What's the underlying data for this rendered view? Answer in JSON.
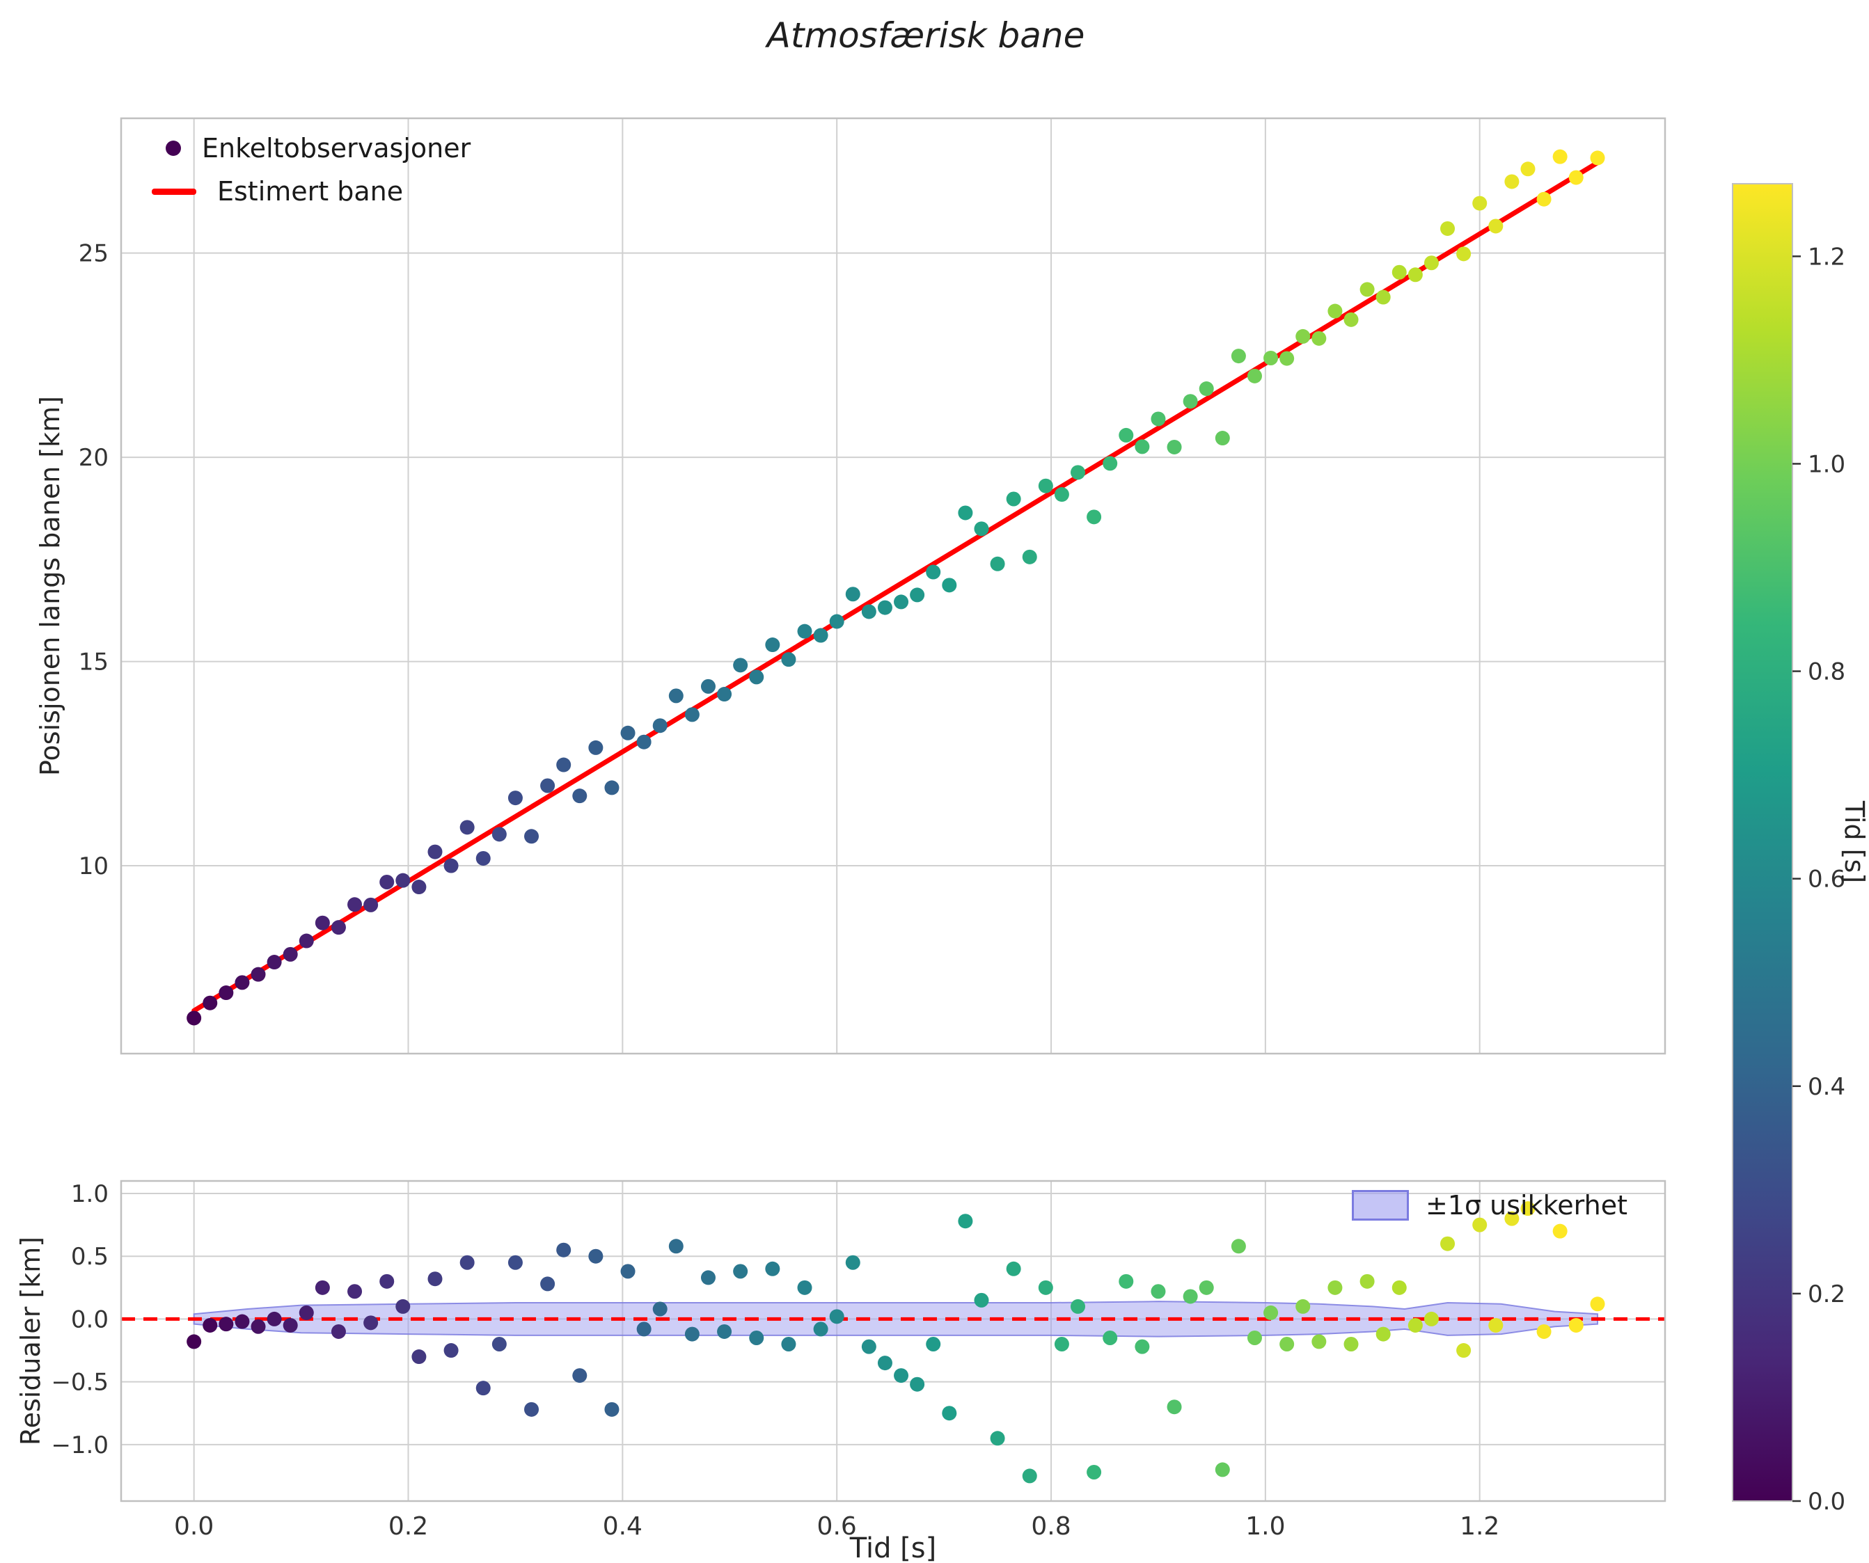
{
  "figure": {
    "background": "#ffffff",
    "grid_color": "#d0d0d0",
    "spine_color": "#c0c0c0",
    "tick_color": "#333333"
  },
  "chart_data": {
    "type": "scatter",
    "title": "Atmosfærisk bane",
    "xlabel": "Tid [s]",
    "xticks": {
      "values": [
        0.0,
        0.2,
        0.4,
        0.6,
        0.8,
        1.0,
        1.2
      ],
      "labels": [
        "0.0",
        "0.2",
        "0.4",
        "0.6",
        "0.8",
        "1.0",
        "1.2"
      ]
    },
    "main": {
      "ylabel": "Posisjonen langs banen [km]",
      "xlim": [
        -0.068,
        1.373
      ],
      "ylim": [
        5.4,
        28.3
      ],
      "grid": true,
      "yticks": {
        "values": [
          10,
          15,
          20,
          25
        ],
        "labels": [
          "10",
          "15",
          "20",
          "25"
        ]
      },
      "legend_position": "upper left",
      "legend": [
        {
          "label": "Enkeltobservasjoner",
          "marker": "dot",
          "color": "#440154"
        },
        {
          "label": "Estimert bane",
          "marker": "line",
          "color": "#ff0000"
        }
      ],
      "trend": {
        "t_start": 0.0,
        "t_end": 1.31,
        "intercept": 6.45,
        "slope": 15.85,
        "color": "#ff0000"
      },
      "points": {
        "t": [
          0.0,
          0.015,
          0.03,
          0.045,
          0.06,
          0.075,
          0.09,
          0.105,
          0.12,
          0.135,
          0.15,
          0.165,
          0.18,
          0.195,
          0.21,
          0.225,
          0.24,
          0.255,
          0.27,
          0.285,
          0.3,
          0.315,
          0.33,
          0.345,
          0.36,
          0.375,
          0.39,
          0.405,
          0.42,
          0.435,
          0.45,
          0.465,
          0.48,
          0.495,
          0.51,
          0.525,
          0.54,
          0.555,
          0.57,
          0.585,
          0.6,
          0.615,
          0.63,
          0.645,
          0.66,
          0.675,
          0.69,
          0.705,
          0.72,
          0.735,
          0.75,
          0.765,
          0.78,
          0.795,
          0.81,
          0.825,
          0.84,
          0.855,
          0.87,
          0.885,
          0.9,
          0.915,
          0.93,
          0.945,
          0.96,
          0.975,
          0.99,
          1.005,
          1.02,
          1.035,
          1.05,
          1.065,
          1.08,
          1.095,
          1.11,
          1.125,
          1.14,
          1.155,
          1.17,
          1.185,
          1.2,
          1.215,
          1.23,
          1.245,
          1.26,
          1.275,
          1.29,
          1.31
        ],
        "y": [
          6.27,
          6.64,
          6.89,
          7.14,
          7.34,
          7.64,
          7.83,
          8.16,
          8.6,
          8.49,
          9.05,
          9.04,
          9.6,
          9.64,
          9.48,
          10.34,
          10.0,
          10.94,
          10.18,
          10.77,
          11.66,
          10.72,
          11.96,
          12.47,
          11.71,
          12.89,
          11.91,
          13.25,
          13.03,
          13.43,
          14.16,
          13.7,
          14.39,
          14.2,
          14.91,
          14.62,
          15.41,
          15.05,
          15.74,
          15.64,
          15.98,
          16.65,
          16.22,
          16.32,
          16.46,
          16.63,
          17.19,
          16.87,
          18.64,
          18.25,
          17.39,
          18.98,
          17.56,
          19.3,
          19.09,
          19.63,
          18.54,
          19.85,
          20.54,
          20.26,
          20.94,
          20.25,
          21.37,
          21.68,
          20.47,
          22.48,
          21.99,
          22.43,
          22.42,
          22.96,
          22.91,
          23.58,
          23.37,
          24.11,
          23.92,
          24.53,
          24.47,
          24.76,
          25.6,
          24.98,
          26.22,
          25.66,
          26.75,
          27.06,
          26.32,
          27.36,
          26.85,
          27.33
        ]
      }
    },
    "residuals": {
      "ylabel": "Residualer [km]",
      "ylim": [
        -1.45,
        1.1
      ],
      "grid": true,
      "yticks": {
        "values": [
          -1.0,
          -0.5,
          0.0,
          0.5,
          1.0
        ],
        "labels": [
          "−1.0",
          "−0.5",
          "0.0",
          "0.5",
          "1.0"
        ]
      },
      "zero_line": {
        "y": 0.0,
        "color": "#ff0000",
        "style": "dashed"
      },
      "legend_label": "±1σ usikkerhet",
      "legend_position": "upper right",
      "band": {
        "t": [
          0.0,
          0.05,
          0.1,
          0.2,
          0.3,
          0.4,
          0.5,
          0.6,
          0.7,
          0.8,
          0.9,
          1.0,
          1.05,
          1.1,
          1.13,
          1.17,
          1.22,
          1.27,
          1.31
        ],
        "sigma": [
          0.04,
          0.08,
          0.11,
          0.12,
          0.13,
          0.13,
          0.13,
          0.13,
          0.13,
          0.13,
          0.14,
          0.13,
          0.12,
          0.1,
          0.08,
          0.13,
          0.12,
          0.06,
          0.04
        ],
        "fill": "#9e9ef0",
        "edge": "#7b7be0"
      },
      "points": {
        "values": [
          -0.18,
          -0.05,
          -0.04,
          -0.02,
          -0.06,
          0.0,
          -0.05,
          0.05,
          0.25,
          -0.1,
          0.22,
          -0.03,
          0.3,
          0.1,
          -0.3,
          0.32,
          -0.25,
          0.45,
          -0.55,
          -0.2,
          0.45,
          -0.72,
          0.28,
          0.55,
          -0.45,
          0.5,
          -0.72,
          0.38,
          -0.08,
          0.08,
          0.58,
          -0.12,
          0.33,
          -0.1,
          0.38,
          -0.15,
          0.4,
          -0.2,
          0.25,
          -0.08,
          0.02,
          0.45,
          -0.22,
          -0.35,
          -0.45,
          -0.52,
          -0.2,
          -0.75,
          0.78,
          0.15,
          -0.95,
          0.4,
          -1.25,
          0.25,
          -0.2,
          0.1,
          -1.22,
          -0.15,
          0.3,
          -0.22,
          0.22,
          -0.7,
          0.18,
          0.25,
          -1.2,
          0.58,
          -0.15,
          0.05,
          -0.2,
          0.1,
          -0.18,
          0.25,
          -0.2,
          0.3,
          -0.12,
          0.25,
          -0.05,
          0.0,
          0.6,
          -0.25,
          0.75,
          -0.05,
          0.8,
          0.88,
          -0.1,
          0.7,
          -0.05,
          0.12
        ]
      }
    },
    "colorbar": {
      "label": "Tid [s]",
      "vmin": 0.0,
      "vmax": 1.27,
      "ticks": {
        "values": [
          0.0,
          0.2,
          0.4,
          0.6,
          0.8,
          1.0,
          1.2
        ],
        "labels": [
          "0.0",
          "0.2",
          "0.4",
          "0.6",
          "0.8",
          "1.0",
          "1.2"
        ]
      },
      "colors": [
        "#440154",
        "#482878",
        "#3e4989",
        "#31688e",
        "#26828e",
        "#1f9e89",
        "#35b779",
        "#6ece58",
        "#b5de2b",
        "#fde725"
      ]
    }
  }
}
